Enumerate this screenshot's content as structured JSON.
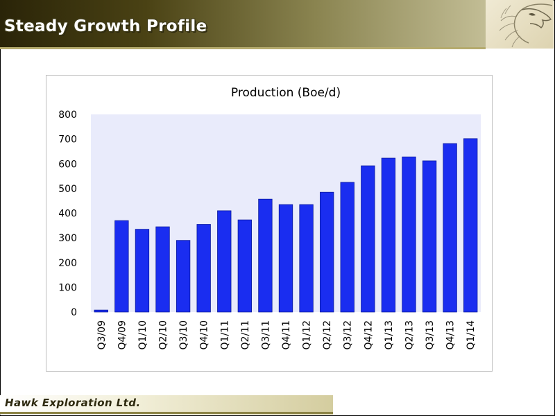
{
  "header": {
    "title": "Steady Growth Profile"
  },
  "footer": {
    "company": "Hawk Exploration Ltd."
  },
  "icons": {
    "logo": "eagle-head-icon"
  },
  "colors": {
    "bar": "#1a2df0",
    "plot_background": "#e9ebfb",
    "header_dark": "#2a2408"
  },
  "chart_data": {
    "type": "bar",
    "title": "Production (Boe/d)",
    "xlabel": "",
    "ylabel": "",
    "ylim": [
      0,
      800
    ],
    "yticks": [
      0,
      100,
      200,
      300,
      400,
      500,
      600,
      700,
      800
    ],
    "grid": false,
    "legend": "none",
    "categories": [
      "Q3/09",
      "Q4/09",
      "Q1/10",
      "Q2/10",
      "Q3/10",
      "Q4/10",
      "Q1/11",
      "Q2/11",
      "Q3/11",
      "Q4/11",
      "Q1/12",
      "Q2/12",
      "Q3/12",
      "Q4/12",
      "Q1/13",
      "Q2/13",
      "Q3/13",
      "Q4/13",
      "Q1/14"
    ],
    "values": [
      8,
      370,
      335,
      345,
      290,
      355,
      410,
      373,
      457,
      435,
      435,
      485,
      525,
      592,
      623,
      628,
      612,
      682,
      702
    ]
  }
}
